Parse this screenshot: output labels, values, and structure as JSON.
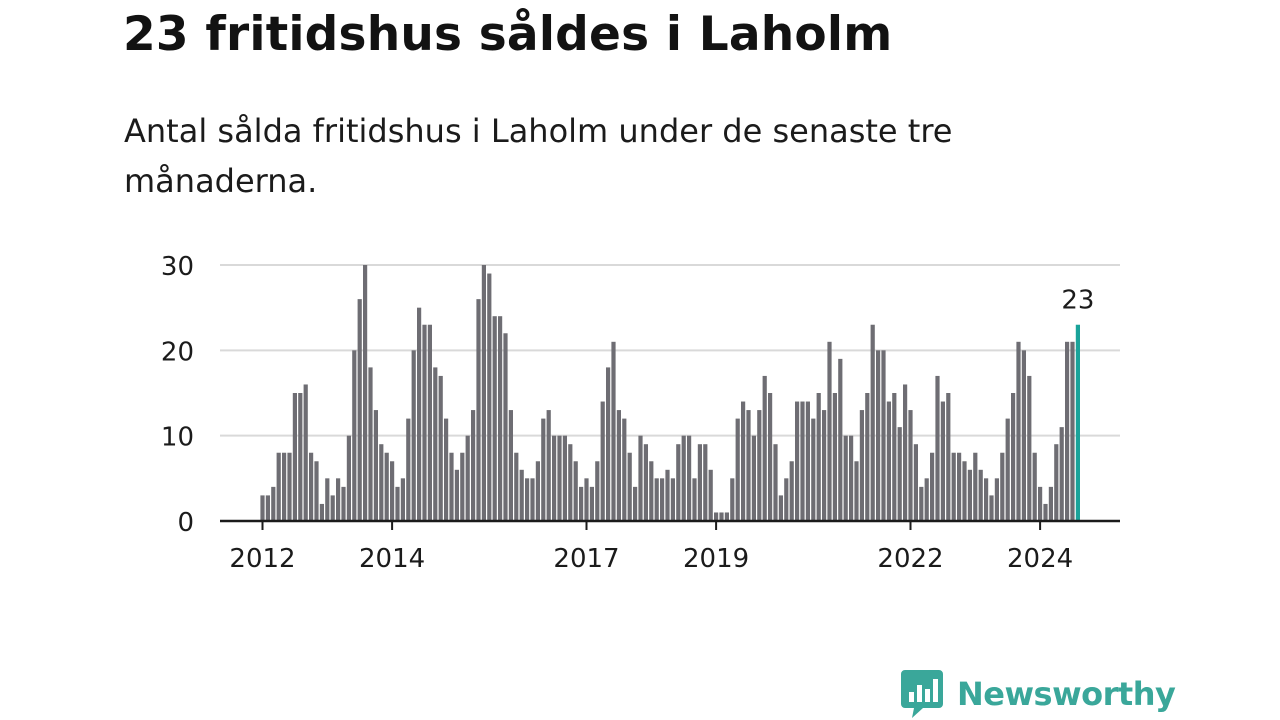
{
  "title": "23 fritidshus såldes i Laholm",
  "subtitle": "Antal sålda fritidshus i Laholm under de senaste tre månaderna.",
  "brand": {
    "name": "Newsworthy",
    "icon": "bar-chart-speech-bubble-icon",
    "color": "#3aa79a"
  },
  "colors": {
    "bar": "#6e6d73",
    "highlight": "#1aa39a",
    "grid": "#d9d9d9",
    "axis": "#1b1b1b"
  },
  "chart_data": {
    "type": "bar",
    "title": "",
    "xlabel": "",
    "ylabel": "",
    "ylim": [
      0,
      30
    ],
    "yticks": [
      "0",
      "10",
      "20",
      "30"
    ],
    "grid": true,
    "x_start": "2012-01",
    "x_tick_labels": [
      "2012",
      "2014",
      "2017",
      "2019",
      "2022",
      "2024"
    ],
    "x_tick_positions": [
      "2012-01",
      "2014-01",
      "2017-01",
      "2019-01",
      "2022-01",
      "2024-01"
    ],
    "highlight_label": "23",
    "values": [
      3,
      3,
      4,
      8,
      8,
      8,
      15,
      15,
      16,
      8,
      7,
      2,
      5,
      3,
      5,
      4,
      10,
      20,
      26,
      30,
      18,
      13,
      9,
      8,
      7,
      4,
      5,
      12,
      20,
      25,
      23,
      23,
      18,
      17,
      12,
      8,
      6,
      8,
      10,
      13,
      26,
      30,
      29,
      24,
      24,
      22,
      13,
      8,
      6,
      5,
      5,
      7,
      12,
      13,
      10,
      10,
      10,
      9,
      7,
      4,
      5,
      4,
      7,
      14,
      18,
      21,
      13,
      12,
      8,
      4,
      10,
      9,
      7,
      5,
      5,
      6,
      5,
      9,
      10,
      10,
      5,
      9,
      9,
      6,
      1,
      1,
      1,
      5,
      12,
      14,
      13,
      10,
      13,
      17,
      15,
      9,
      3,
      5,
      7,
      14,
      14,
      14,
      12,
      15,
      13,
      21,
      15,
      19,
      10,
      10,
      7,
      13,
      15,
      23,
      20,
      20,
      14,
      15,
      11,
      16,
      13,
      9,
      4,
      5,
      8,
      17,
      14,
      15,
      8,
      8,
      7,
      6,
      8,
      6,
      5,
      3,
      5,
      8,
      12,
      15,
      21,
      20,
      17,
      8,
      4,
      2,
      4,
      9,
      11,
      21,
      21,
      23
    ]
  }
}
